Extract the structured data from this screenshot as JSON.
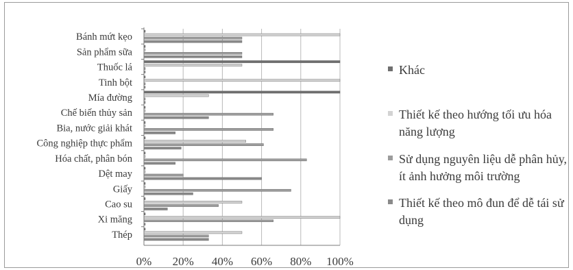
{
  "chart_data": {
    "type": "bar",
    "orientation": "horizontal",
    "categories": [
      "Bánh mứt kẹo",
      "Sản phẩm sữa",
      "Thuốc lá",
      "Tinh bột",
      "Mía đường",
      "Chế biến thủy sản",
      "Bia, nước giải khát",
      "Công nghiệp thực phẩm",
      "Hóa chất, phân bón",
      "Dệt may",
      "Giấy",
      "Cao su",
      "Xi măng",
      "Thép"
    ],
    "series": [
      {
        "name": "Khác",
        "color": "#6f6f6f",
        "values": [
          0,
          0,
          100,
          0,
          100,
          0,
          0,
          0,
          0,
          0,
          0,
          0,
          0,
          0
        ]
      },
      {
        "name": "Thiết kế theo hướng tối ưu hóa năng lượng",
        "color": "#d3d3d3",
        "values": [
          100,
          0,
          50,
          100,
          33,
          0,
          0,
          52,
          0,
          0,
          0,
          50,
          100,
          50
        ]
      },
      {
        "name": "Sử dụng nguyên liệu dễ phân hủy, ít ảnh hưởng môi trường",
        "color": "#9c9c9c",
        "values": [
          50,
          50,
          0,
          0,
          0,
          66,
          66,
          61,
          83,
          20,
          75,
          38,
          66,
          33
        ]
      },
      {
        "name": "Thiết kế theo mô đun để dễ tái sử dụng",
        "color": "#8a8a8a",
        "values": [
          50,
          50,
          0,
          0,
          0,
          33,
          16,
          19,
          16,
          60,
          25,
          12,
          0,
          33
        ]
      }
    ],
    "x_ticks": [
      "0%",
      "20%",
      "40%",
      "60%",
      "80%",
      "100%"
    ],
    "xlim": [
      0,
      100
    ],
    "grid": true,
    "legend_position": "right"
  }
}
